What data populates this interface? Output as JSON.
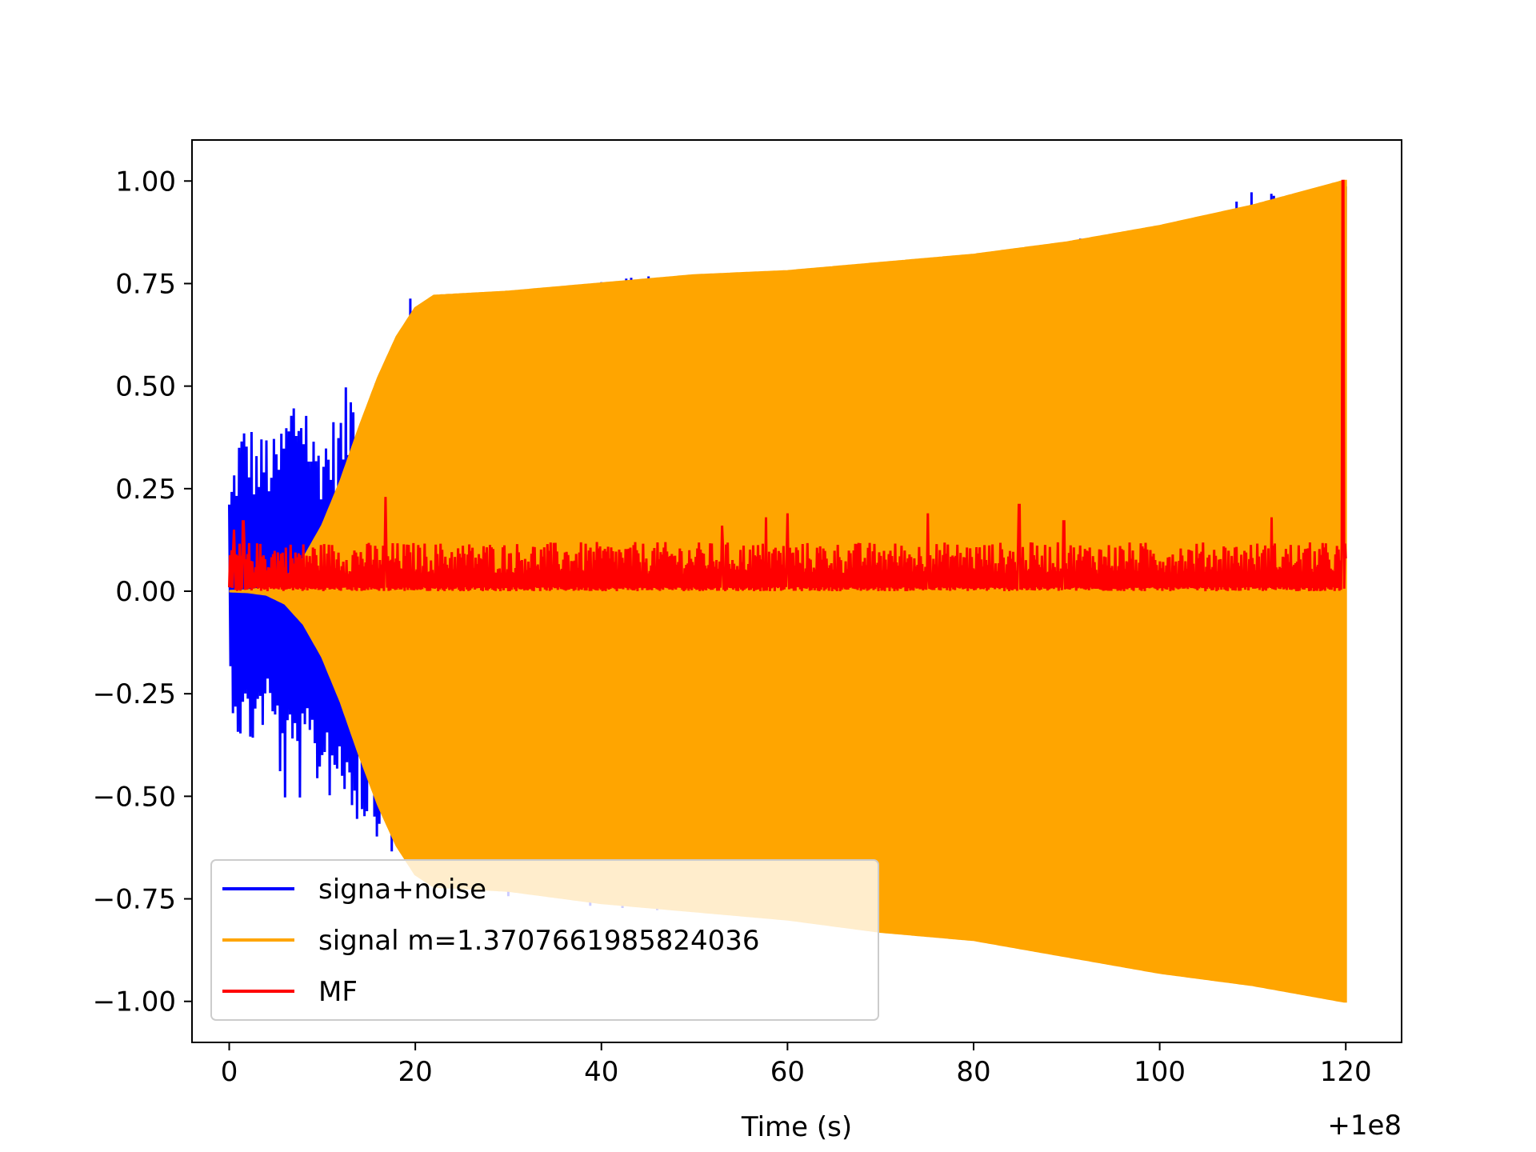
{
  "chart_data": {
    "type": "line",
    "title": "",
    "xlabel": "Time (s)",
    "ylabel": "",
    "x_offset_text": "+1e8",
    "xlim": [
      -4,
      126
    ],
    "ylim": [
      -1.1,
      1.1
    ],
    "x_ticks": [
      0,
      20,
      40,
      60,
      80,
      100,
      120
    ],
    "x_tick_labels": [
      "0",
      "20",
      "40",
      "60",
      "80",
      "100",
      "120"
    ],
    "y_ticks": [
      1.0,
      0.75,
      0.5,
      0.25,
      0.0,
      -0.25,
      -0.5,
      -0.75,
      -1.0
    ],
    "y_tick_labels": [
      "1.00",
      "0.75",
      "0.50",
      "0.25",
      "0.00",
      "−0.25",
      "−0.50",
      "−0.75",
      "−1.00"
    ],
    "grid": false,
    "legend_position": "lower-left",
    "series": [
      {
        "name": "signa+noise",
        "color": "#0000ff",
        "kind": "oscillation",
        "envelope_upper": [
          [
            0,
            0.25
          ],
          [
            1,
            0.4
          ],
          [
            2,
            0.44
          ],
          [
            3,
            0.37
          ],
          [
            4,
            0.4
          ],
          [
            5,
            0.37
          ],
          [
            6,
            0.45
          ],
          [
            7,
            0.52
          ],
          [
            8,
            0.54
          ],
          [
            9,
            0.4
          ],
          [
            10,
            0.4
          ],
          [
            12,
            0.45
          ],
          [
            13,
            0.54
          ],
          [
            14,
            0.54
          ],
          [
            16,
            0.56
          ],
          [
            17,
            0.62
          ],
          [
            19,
            0.7
          ],
          [
            20,
            0.75
          ],
          [
            23,
            0.72
          ],
          [
            42.6,
            0.77
          ],
          [
            48.3,
            0.77
          ],
          [
            60,
            0.78
          ],
          [
            80,
            0.82
          ],
          [
            100,
            0.91
          ],
          [
            112.3,
            1.0
          ],
          [
            114,
            0.96
          ],
          [
            120,
            1.0
          ]
        ],
        "envelope_lower": [
          [
            0,
            -0.25
          ],
          [
            1,
            -0.37
          ],
          [
            2,
            -0.4
          ],
          [
            3,
            -0.37
          ],
          [
            4,
            -0.33
          ],
          [
            5,
            -0.4
          ],
          [
            6,
            -0.54
          ],
          [
            7,
            -0.48
          ],
          [
            8,
            -0.54
          ],
          [
            9,
            -0.48
          ],
          [
            10,
            -0.5
          ],
          [
            12,
            -0.52
          ],
          [
            14,
            -0.58
          ],
          [
            16,
            -0.6
          ],
          [
            18,
            -0.68
          ],
          [
            20,
            -0.72
          ],
          [
            42.6,
            -0.78
          ],
          [
            60,
            -0.8
          ],
          [
            80,
            -0.85
          ],
          [
            100,
            -0.92
          ],
          [
            112.3,
            -1.01
          ],
          [
            114,
            -0.96
          ],
          [
            120,
            -1.0
          ]
        ]
      },
      {
        "name": "signal m=1.3707661985824036",
        "color": "#ffa500",
        "kind": "oscillation",
        "envelope_upper": [
          [
            0,
            0.0
          ],
          [
            2,
            0.002
          ],
          [
            4,
            0.008
          ],
          [
            6,
            0.03
          ],
          [
            8,
            0.08
          ],
          [
            10,
            0.16
          ],
          [
            12,
            0.27
          ],
          [
            14,
            0.4
          ],
          [
            16,
            0.52
          ],
          [
            18,
            0.62
          ],
          [
            20,
            0.69
          ],
          [
            22,
            0.72
          ],
          [
            30,
            0.73
          ],
          [
            40,
            0.75
          ],
          [
            50,
            0.77
          ],
          [
            60,
            0.78
          ],
          [
            70,
            0.8
          ],
          [
            80,
            0.82
          ],
          [
            90,
            0.85
          ],
          [
            100,
            0.89
          ],
          [
            110,
            0.94
          ],
          [
            119.8,
            1.0
          ]
        ],
        "envelope_lower": [
          [
            0,
            0.0
          ],
          [
            2,
            -0.002
          ],
          [
            4,
            -0.008
          ],
          [
            6,
            -0.03
          ],
          [
            8,
            -0.08
          ],
          [
            10,
            -0.16
          ],
          [
            12,
            -0.27
          ],
          [
            14,
            -0.4
          ],
          [
            16,
            -0.52
          ],
          [
            18,
            -0.62
          ],
          [
            20,
            -0.69
          ],
          [
            22,
            -0.72
          ],
          [
            30,
            -0.73
          ],
          [
            40,
            -0.76
          ],
          [
            50,
            -0.78
          ],
          [
            60,
            -0.8
          ],
          [
            70,
            -0.83
          ],
          [
            80,
            -0.85
          ],
          [
            90,
            -0.89
          ],
          [
            100,
            -0.93
          ],
          [
            110,
            -0.96
          ],
          [
            119.8,
            -1.0
          ]
        ]
      },
      {
        "name": "MF",
        "color": "#ff0000",
        "kind": "noise_band",
        "baseline": 0.0,
        "typical_high": 0.12,
        "spikes": [
          [
            0.5,
            0.15
          ],
          [
            1.5,
            0.17
          ],
          [
            16.8,
            0.23
          ],
          [
            53,
            0.16
          ],
          [
            57.7,
            0.18
          ],
          [
            60,
            0.19
          ],
          [
            75.1,
            0.19
          ],
          [
            84.9,
            0.21
          ],
          [
            89.7,
            0.17
          ],
          [
            112,
            0.18
          ],
          [
            119.7,
            1.0
          ],
          [
            120,
            0.08
          ]
        ]
      }
    ]
  }
}
